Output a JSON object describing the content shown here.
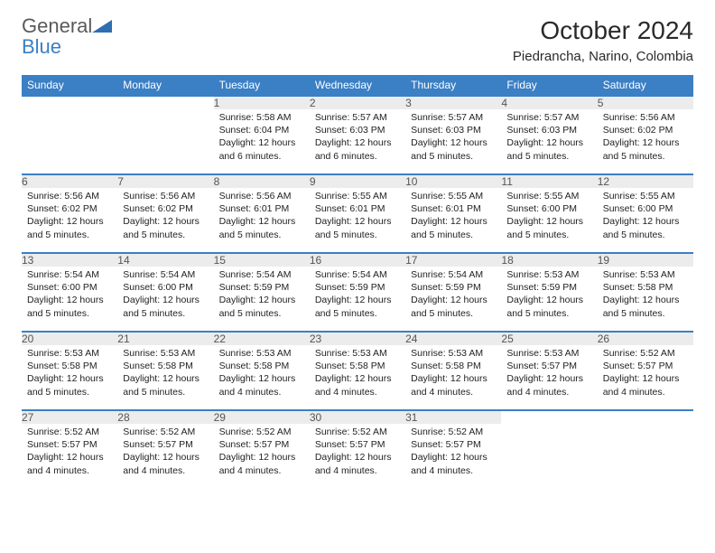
{
  "logo": {
    "text_gray": "General",
    "text_blue": "Blue"
  },
  "title": "October 2024",
  "location": "Piedrancha, Narino, Colombia",
  "colors": {
    "header_bg": "#3b7fc4",
    "header_text": "#ffffff",
    "daynum_bg": "#ececec",
    "daynum_text": "#555555",
    "border": "#3b7fc4",
    "body_text": "#222222",
    "logo_gray": "#5a5a5a",
    "logo_blue": "#3b7fc4"
  },
  "day_headers": [
    "Sunday",
    "Monday",
    "Tuesday",
    "Wednesday",
    "Thursday",
    "Friday",
    "Saturday"
  ],
  "weeks": [
    [
      null,
      null,
      {
        "n": "1",
        "sr": "Sunrise: 5:58 AM",
        "ss": "Sunset: 6:04 PM",
        "d1": "Daylight: 12 hours",
        "d2": "and 6 minutes."
      },
      {
        "n": "2",
        "sr": "Sunrise: 5:57 AM",
        "ss": "Sunset: 6:03 PM",
        "d1": "Daylight: 12 hours",
        "d2": "and 6 minutes."
      },
      {
        "n": "3",
        "sr": "Sunrise: 5:57 AM",
        "ss": "Sunset: 6:03 PM",
        "d1": "Daylight: 12 hours",
        "d2": "and 5 minutes."
      },
      {
        "n": "4",
        "sr": "Sunrise: 5:57 AM",
        "ss": "Sunset: 6:03 PM",
        "d1": "Daylight: 12 hours",
        "d2": "and 5 minutes."
      },
      {
        "n": "5",
        "sr": "Sunrise: 5:56 AM",
        "ss": "Sunset: 6:02 PM",
        "d1": "Daylight: 12 hours",
        "d2": "and 5 minutes."
      }
    ],
    [
      {
        "n": "6",
        "sr": "Sunrise: 5:56 AM",
        "ss": "Sunset: 6:02 PM",
        "d1": "Daylight: 12 hours",
        "d2": "and 5 minutes."
      },
      {
        "n": "7",
        "sr": "Sunrise: 5:56 AM",
        "ss": "Sunset: 6:02 PM",
        "d1": "Daylight: 12 hours",
        "d2": "and 5 minutes."
      },
      {
        "n": "8",
        "sr": "Sunrise: 5:56 AM",
        "ss": "Sunset: 6:01 PM",
        "d1": "Daylight: 12 hours",
        "d2": "and 5 minutes."
      },
      {
        "n": "9",
        "sr": "Sunrise: 5:55 AM",
        "ss": "Sunset: 6:01 PM",
        "d1": "Daylight: 12 hours",
        "d2": "and 5 minutes."
      },
      {
        "n": "10",
        "sr": "Sunrise: 5:55 AM",
        "ss": "Sunset: 6:01 PM",
        "d1": "Daylight: 12 hours",
        "d2": "and 5 minutes."
      },
      {
        "n": "11",
        "sr": "Sunrise: 5:55 AM",
        "ss": "Sunset: 6:00 PM",
        "d1": "Daylight: 12 hours",
        "d2": "and 5 minutes."
      },
      {
        "n": "12",
        "sr": "Sunrise: 5:55 AM",
        "ss": "Sunset: 6:00 PM",
        "d1": "Daylight: 12 hours",
        "d2": "and 5 minutes."
      }
    ],
    [
      {
        "n": "13",
        "sr": "Sunrise: 5:54 AM",
        "ss": "Sunset: 6:00 PM",
        "d1": "Daylight: 12 hours",
        "d2": "and 5 minutes."
      },
      {
        "n": "14",
        "sr": "Sunrise: 5:54 AM",
        "ss": "Sunset: 6:00 PM",
        "d1": "Daylight: 12 hours",
        "d2": "and 5 minutes."
      },
      {
        "n": "15",
        "sr": "Sunrise: 5:54 AM",
        "ss": "Sunset: 5:59 PM",
        "d1": "Daylight: 12 hours",
        "d2": "and 5 minutes."
      },
      {
        "n": "16",
        "sr": "Sunrise: 5:54 AM",
        "ss": "Sunset: 5:59 PM",
        "d1": "Daylight: 12 hours",
        "d2": "and 5 minutes."
      },
      {
        "n": "17",
        "sr": "Sunrise: 5:54 AM",
        "ss": "Sunset: 5:59 PM",
        "d1": "Daylight: 12 hours",
        "d2": "and 5 minutes."
      },
      {
        "n": "18",
        "sr": "Sunrise: 5:53 AM",
        "ss": "Sunset: 5:59 PM",
        "d1": "Daylight: 12 hours",
        "d2": "and 5 minutes."
      },
      {
        "n": "19",
        "sr": "Sunrise: 5:53 AM",
        "ss": "Sunset: 5:58 PM",
        "d1": "Daylight: 12 hours",
        "d2": "and 5 minutes."
      }
    ],
    [
      {
        "n": "20",
        "sr": "Sunrise: 5:53 AM",
        "ss": "Sunset: 5:58 PM",
        "d1": "Daylight: 12 hours",
        "d2": "and 5 minutes."
      },
      {
        "n": "21",
        "sr": "Sunrise: 5:53 AM",
        "ss": "Sunset: 5:58 PM",
        "d1": "Daylight: 12 hours",
        "d2": "and 5 minutes."
      },
      {
        "n": "22",
        "sr": "Sunrise: 5:53 AM",
        "ss": "Sunset: 5:58 PM",
        "d1": "Daylight: 12 hours",
        "d2": "and 4 minutes."
      },
      {
        "n": "23",
        "sr": "Sunrise: 5:53 AM",
        "ss": "Sunset: 5:58 PM",
        "d1": "Daylight: 12 hours",
        "d2": "and 4 minutes."
      },
      {
        "n": "24",
        "sr": "Sunrise: 5:53 AM",
        "ss": "Sunset: 5:58 PM",
        "d1": "Daylight: 12 hours",
        "d2": "and 4 minutes."
      },
      {
        "n": "25",
        "sr": "Sunrise: 5:53 AM",
        "ss": "Sunset: 5:57 PM",
        "d1": "Daylight: 12 hours",
        "d2": "and 4 minutes."
      },
      {
        "n": "26",
        "sr": "Sunrise: 5:52 AM",
        "ss": "Sunset: 5:57 PM",
        "d1": "Daylight: 12 hours",
        "d2": "and 4 minutes."
      }
    ],
    [
      {
        "n": "27",
        "sr": "Sunrise: 5:52 AM",
        "ss": "Sunset: 5:57 PM",
        "d1": "Daylight: 12 hours",
        "d2": "and 4 minutes."
      },
      {
        "n": "28",
        "sr": "Sunrise: 5:52 AM",
        "ss": "Sunset: 5:57 PM",
        "d1": "Daylight: 12 hours",
        "d2": "and 4 minutes."
      },
      {
        "n": "29",
        "sr": "Sunrise: 5:52 AM",
        "ss": "Sunset: 5:57 PM",
        "d1": "Daylight: 12 hours",
        "d2": "and 4 minutes."
      },
      {
        "n": "30",
        "sr": "Sunrise: 5:52 AM",
        "ss": "Sunset: 5:57 PM",
        "d1": "Daylight: 12 hours",
        "d2": "and 4 minutes."
      },
      {
        "n": "31",
        "sr": "Sunrise: 5:52 AM",
        "ss": "Sunset: 5:57 PM",
        "d1": "Daylight: 12 hours",
        "d2": "and 4 minutes."
      },
      null,
      null
    ]
  ]
}
